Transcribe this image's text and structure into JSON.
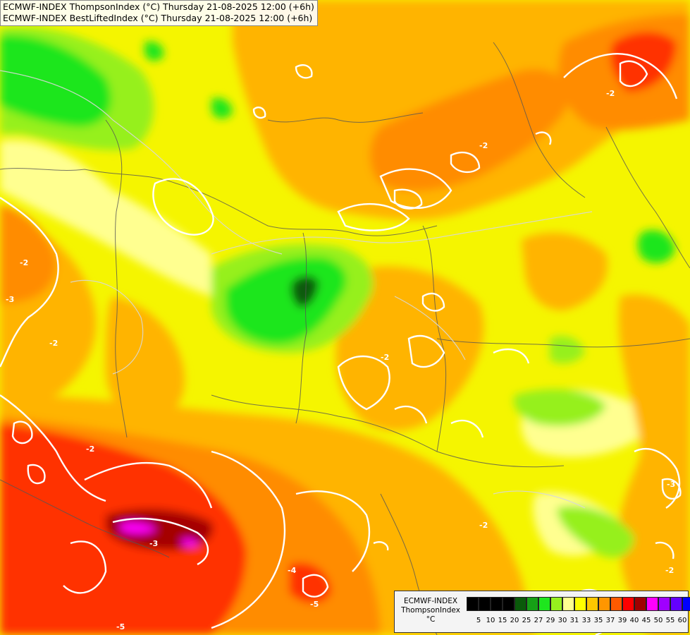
{
  "title": {
    "line1": "ECMWF-INDEX ThompsonIndex (°C) Thursday 21-08-2025 12:00 (+6h)",
    "line2": "ECMWF-INDEX BestLiftedIndex (°C) Thursday 21-08-2025 12:00 (+6h)"
  },
  "legend": {
    "model": "ECMWF-INDEX",
    "parameter": "ThompsonIndex",
    "unit": "°C",
    "ticks": [
      "5",
      "10",
      "15",
      "20",
      "25",
      "27",
      "29",
      "30",
      "31",
      "33",
      "35",
      "37",
      "39",
      "40",
      "45",
      "50",
      "55",
      "60"
    ],
    "colors": [
      "#000000",
      "#000000",
      "#000000",
      "#000000",
      "#0a5a0a",
      "#16a016",
      "#1ee61e",
      "#96f01e",
      "#ffff90",
      "#ffff00",
      "#ffc800",
      "#ff9600",
      "#ff5a00",
      "#ff0000",
      "#a00000",
      "#ff00ff",
      "#a000ff",
      "#6400ff",
      "#0000ff"
    ]
  },
  "contour_labels": [
    "-2",
    "-3",
    "-2",
    "-2",
    "-2",
    "-3",
    "-2",
    "-2",
    "-4",
    "-5",
    "-5",
    "-3",
    "-2",
    "-2"
  ]
}
